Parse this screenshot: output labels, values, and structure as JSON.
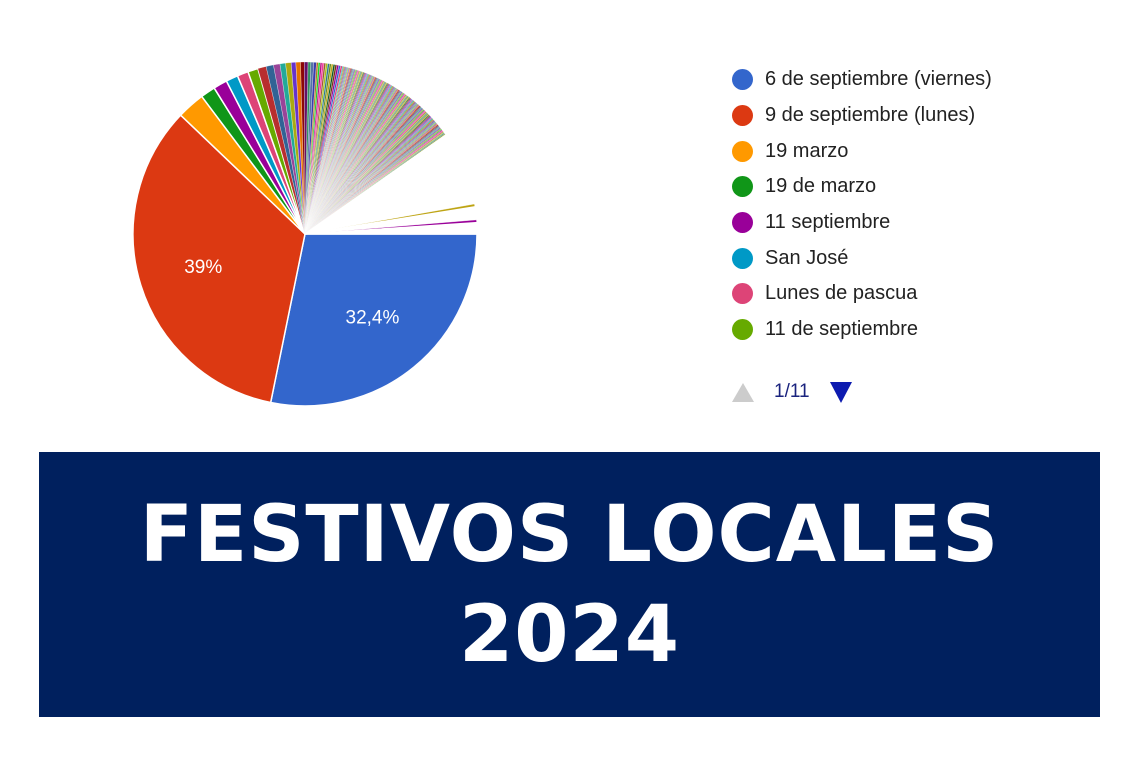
{
  "chart_data": {
    "type": "pie",
    "start_angle_deg": 90,
    "direction": "clockwise",
    "slices": [
      {
        "name": "6 de septiembre (viernes)",
        "value": 32.4,
        "label": "32,4%",
        "color": "#3366cc"
      },
      {
        "name": "9 de septiembre (lunes)",
        "value": 39.0,
        "label": "39%",
        "color": "#dc3912"
      },
      {
        "name": "19 marzo",
        "value": 3.0,
        "label": "",
        "color": "#ff9900"
      },
      {
        "name": "19 de marzo",
        "value": 1.6,
        "label": "",
        "color": "#109618"
      },
      {
        "name": "11 septiembre",
        "value": 1.5,
        "label": "",
        "color": "#990099"
      },
      {
        "name": "San José",
        "value": 1.3,
        "label": "",
        "color": "#0099c6"
      },
      {
        "name": "Lunes de pascua",
        "value": 1.2,
        "label": "",
        "color": "#dd4477"
      },
      {
        "name": "11 de septiembre",
        "value": 1.1,
        "label": "",
        "color": "#66aa00"
      },
      {
        "value": 0.9,
        "label": "",
        "color": "#b82e2e"
      },
      {
        "value": 0.8,
        "label": "",
        "color": "#316395"
      },
      {
        "value": 0.7,
        "label": "",
        "color": "#994499"
      },
      {
        "value": 0.6,
        "label": "",
        "color": "#22aa99"
      },
      {
        "value": 0.6,
        "label": "",
        "color": "#aaaa11"
      },
      {
        "value": 0.5,
        "label": "",
        "color": "#6633cc"
      },
      {
        "value": 0.5,
        "label": "",
        "color": "#e67300"
      },
      {
        "value": 0.4,
        "label": "",
        "color": "#8b0707"
      },
      {
        "value": 0.4,
        "label": "",
        "color": "#651067"
      },
      {
        "value": 0.3,
        "label": "",
        "color": "#329262"
      },
      {
        "value": 0.3,
        "label": "",
        "color": "#5574a6"
      },
      {
        "value": 0.3,
        "label": "",
        "color": "#3b3eac"
      },
      {
        "value": 0.2,
        "label": "",
        "color": "#b77322"
      },
      {
        "value": 0.2,
        "label": "",
        "color": "#16d620"
      },
      {
        "value": 0.2,
        "label": "",
        "color": "#b91383"
      },
      {
        "value": 0.2,
        "label": "",
        "color": "#f4359e"
      },
      {
        "value": 0.2,
        "label": "",
        "color": "#9c5935"
      },
      {
        "value": 0.2,
        "label": "",
        "color": "#a9c413"
      },
      {
        "value": 0.2,
        "label": "",
        "color": "#2a778d"
      },
      {
        "value": 0.2,
        "label": "",
        "color": "#668d1c"
      },
      {
        "value": 0.2,
        "label": "",
        "color": "#bea413"
      },
      {
        "value": 0.2,
        "label": "",
        "color": "#0c5922"
      },
      {
        "value": 0.2,
        "label": "",
        "color": "#743411"
      },
      {
        "value": 0.2,
        "label": "",
        "color": "#990099"
      },
      {
        "value": 0.2,
        "label": "",
        "color": "#3366cc"
      },
      {
        "value": 0.2,
        "label": "",
        "color": "#dd4477"
      },
      {
        "value": 0.1,
        "label": "",
        "color": "#0099c6"
      },
      {
        "value": 0.1,
        "label": "",
        "color": "#66aa00"
      },
      {
        "value": 0.1,
        "label": "",
        "color": "#b82e2e"
      },
      {
        "value": 0.1,
        "label": "",
        "color": "#316395"
      },
      {
        "value": 0.1,
        "label": "",
        "color": "#994499"
      },
      {
        "value": 0.1,
        "label": "",
        "color": "#22aa99"
      },
      {
        "value": 0.1,
        "label": "",
        "color": "#aaaa11"
      },
      {
        "value": 0.1,
        "label": "",
        "color": "#6633cc"
      },
      {
        "value": 0.1,
        "label": "",
        "color": "#e67300"
      },
      {
        "value": 0.1,
        "label": "",
        "color": "#8b0707"
      },
      {
        "value": 0.1,
        "label": "",
        "color": "#651067"
      },
      {
        "value": 0.1,
        "label": "",
        "color": "#329262"
      },
      {
        "value": 0.1,
        "label": "",
        "color": "#5574a6"
      },
      {
        "value": 0.1,
        "label": "",
        "color": "#3b3eac"
      },
      {
        "value": 0.1,
        "label": "",
        "color": "#b77322"
      },
      {
        "value": 0.1,
        "label": "",
        "color": "#16d620"
      },
      {
        "value": 0.1,
        "label": "",
        "color": "#b91383"
      },
      {
        "value": 0.1,
        "label": "",
        "color": "#f4359e"
      },
      {
        "value": 0.1,
        "label": "",
        "color": "#9c5935"
      },
      {
        "value": 0.1,
        "label": "",
        "color": "#a9c413"
      },
      {
        "value": 0.1,
        "label": "",
        "color": "#2a778d"
      },
      {
        "value": 0.1,
        "label": "",
        "color": "#668d1c"
      },
      {
        "value": 0.1,
        "label": "",
        "color": "#bea413"
      },
      {
        "value": 0.1,
        "label": "",
        "color": "#0c5922"
      },
      {
        "value": 0.1,
        "label": "",
        "color": "#743411"
      },
      {
        "value": 0.1,
        "label": "",
        "color": "#990099"
      },
      {
        "value": 0.1,
        "label": "",
        "color": "#3366cc"
      },
      {
        "value": 0.1,
        "label": "",
        "color": "#dd4477"
      },
      {
        "value": 0.1,
        "label": "",
        "color": "#0099c6"
      },
      {
        "value": 0.1,
        "label": "",
        "color": "#66aa00"
      },
      {
        "value": 0.1,
        "label": "",
        "color": "#b82e2e"
      },
      {
        "value": 0.1,
        "label": "",
        "color": "#316395"
      },
      {
        "value": 0.1,
        "label": "",
        "color": "#994499"
      },
      {
        "value": 0.1,
        "label": "",
        "color": "#22aa99"
      },
      {
        "value": 0.1,
        "label": "",
        "color": "#aaaa11"
      },
      {
        "value": 0.1,
        "label": "",
        "color": "#6633cc"
      },
      {
        "value": 0.1,
        "label": "",
        "color": "#e67300"
      },
      {
        "value": 0.1,
        "label": "",
        "color": "#8b0707"
      },
      {
        "value": 0.1,
        "label": "",
        "color": "#651067"
      },
      {
        "value": 0.1,
        "label": "",
        "color": "#329262"
      },
      {
        "value": 0.1,
        "label": "",
        "color": "#5574a6"
      },
      {
        "value": 0.1,
        "label": "",
        "color": "#3b3eac"
      },
      {
        "value": 0.1,
        "label": "",
        "color": "#b77322"
      },
      {
        "value": 0.1,
        "label": "",
        "color": "#16d620"
      },
      {
        "value": 0.1,
        "label": "",
        "color": "#b91383"
      },
      {
        "value": 0.1,
        "label": "",
        "color": "#f4359e"
      },
      {
        "value": 0.1,
        "label": "",
        "color": "#9c5935"
      },
      {
        "value": 0.1,
        "label": "",
        "color": "#a9c413"
      },
      {
        "value": 0.1,
        "label": "",
        "color": "#2a778d"
      },
      {
        "value": 0.1,
        "label": "",
        "color": "#668d1c"
      },
      {
        "value": 0.1,
        "label": "",
        "color": "#bea413"
      },
      {
        "value": 0.1,
        "label": "",
        "color": "#0c5922"
      },
      {
        "value": 0.1,
        "label": "",
        "color": "#743411"
      },
      {
        "value": 0.1,
        "label": "",
        "color": "#990099"
      },
      {
        "value": 0.1,
        "label": "",
        "color": "#3366cc"
      },
      {
        "value": 0.1,
        "label": "",
        "color": "#dd4477"
      },
      {
        "value": 0.1,
        "label": "",
        "color": "#0099c6"
      },
      {
        "value": 0.1,
        "label": "",
        "color": "#66aa00"
      },
      {
        "value": 0.1,
        "label": "",
        "color": "#b82e2e"
      },
      {
        "value": 0.1,
        "label": "",
        "color": "#316395"
      },
      {
        "value": 0.1,
        "label": "",
        "color": "#994499"
      },
      {
        "value": 0.1,
        "label": "",
        "color": "#22aa99"
      },
      {
        "value": 0.1,
        "label": "",
        "color": "#aaaa11"
      },
      {
        "value": 0.1,
        "label": "",
        "color": "#6633cc"
      },
      {
        "value": 0.1,
        "label": "",
        "color": "#e67300"
      },
      {
        "value": 0.1,
        "label": "",
        "color": "#8b0707"
      },
      {
        "value": 0.1,
        "label": "",
        "color": "#651067"
      },
      {
        "value": 0.1,
        "label": "",
        "color": "#329262"
      },
      {
        "value": 0.1,
        "label": "",
        "color": "#5574a6"
      },
      {
        "value": 0.1,
        "label": "",
        "color": "#3b3eac"
      },
      {
        "value": 0.1,
        "label": "",
        "color": "#b77322"
      },
      {
        "value": 0.1,
        "label": "",
        "color": "#16d620"
      },
      {
        "value": 0.1,
        "label": "",
        "color": "#b91383"
      },
      {
        "value": 0.1,
        "label": "",
        "color": "#f4359e"
      },
      {
        "value": 0.1,
        "label": "",
        "color": "#9c5935"
      },
      {
        "value": 0.1,
        "label": "",
        "color": "#a9c413"
      },
      {
        "value": 0.1,
        "label": "",
        "color": "#2a778d"
      },
      {
        "value": 0.1,
        "label": "",
        "color": "#668d1c"
      },
      {
        "value": 0.1,
        "label": "",
        "color": "#bea413"
      },
      {
        "value": 0.1,
        "label": "",
        "color": "#0c5922"
      },
      {
        "value": 0.1,
        "label": "",
        "color": "#743411"
      },
      {
        "value": 0.1,
        "label": "",
        "color": "#990099"
      },
      {
        "value": 0.1,
        "label": "",
        "color": "#3366cc"
      },
      {
        "value": 0.1,
        "label": "",
        "color": "#dd4477"
      },
      {
        "value": 0.1,
        "label": "",
        "color": "#0099c6"
      },
      {
        "value": 0.1,
        "label": "",
        "color": "#66aa00"
      },
      {
        "value": 0.1,
        "label": "",
        "color": "#b82e2e"
      },
      {
        "value": 0.1,
        "label": "",
        "color": "#316395"
      },
      {
        "value": 0.1,
        "label": "",
        "color": "#994499"
      },
      {
        "value": 0.1,
        "label": "",
        "color": "#22aa99"
      },
      {
        "value": 0.1,
        "label": "",
        "color": "#aaaa11"
      },
      {
        "value": 0.1,
        "label": "",
        "color": "#6633cc"
      },
      {
        "value": 0.1,
        "label": "",
        "color": "#e67300"
      },
      {
        "value": 0.1,
        "label": "",
        "color": "#8b0707"
      },
      {
        "value": 0.1,
        "label": "",
        "color": "#651067"
      },
      {
        "value": 0.1,
        "label": "",
        "color": "#329262"
      },
      {
        "value": 0.1,
        "label": "",
        "color": "#5574a6"
      },
      {
        "value": 0.1,
        "label": "",
        "color": "#3b3eac"
      },
      {
        "value": 0.1,
        "label": "",
        "color": "#b77322"
      },
      {
        "value": 0.1,
        "label": "",
        "color": "#16d620"
      },
      {
        "value": 0.1,
        "label": "",
        "color": "#b91383"
      },
      {
        "value": 0.1,
        "label": "",
        "color": "#f4359e"
      },
      {
        "value": 0.1,
        "label": "",
        "color": "#9c5935"
      },
      {
        "value": 0.1,
        "label": "",
        "color": "#a9c413"
      },
      {
        "value": 0.1,
        "label": "",
        "color": "#2a778d"
      },
      {
        "value": 0.1,
        "label": "",
        "color": "#668d1c"
      },
      {
        "value": 0.1,
        "label": "",
        "color": "#bea413"
      },
      {
        "value": 0.1,
        "label": "",
        "color": "#0c5922"
      },
      {
        "value": 0.1,
        "label": "",
        "color": "#743411"
      },
      {
        "value": 0.1,
        "label": "",
        "color": "#990099"
      },
      {
        "value": 0.1,
        "label": "",
        "color": "#3366cc"
      },
      {
        "value": 0.1,
        "label": "",
        "color": "#dd4477"
      },
      {
        "value": 0.1,
        "label": "",
        "color": "#0099c6"
      },
      {
        "value": 0.1,
        "label": "",
        "color": "#66aa00"
      },
      {
        "value": 0.1,
        "label": "",
        "color": "#b82e2e"
      },
      {
        "value": 0.1,
        "label": "",
        "color": "#316395"
      },
      {
        "value": 0.1,
        "label": "",
        "color": "#994499"
      },
      {
        "value": 0.1,
        "label": "",
        "color": "#22aa99"
      },
      {
        "value": 0.1,
        "label": "",
        "color": "#aaaa11"
      },
      {
        "value": 0.1,
        "label": "",
        "color": "#6633cc"
      },
      {
        "value": 0.1,
        "label": "",
        "color": "#e67300"
      },
      {
        "value": 0.1,
        "label": "",
        "color": "#8b0707"
      },
      {
        "value": 0.1,
        "label": "",
        "color": "#651067"
      },
      {
        "value": 0.1,
        "label": "",
        "color": "#329262"
      },
      {
        "value": 0.1,
        "label": "",
        "color": "#5574a6"
      },
      {
        "value": 0.1,
        "label": "",
        "color": "#3b3eac"
      },
      {
        "value": 0.1,
        "label": "",
        "color": "#b77322"
      },
      {
        "value": 0.1,
        "label": "",
        "color": "#16d620"
      },
      {
        "value": 0.1,
        "label": "",
        "color": "#b91383"
      },
      {
        "value": 0.1,
        "label": "",
        "color": "#f4359e"
      },
      {
        "value": 0.1,
        "label": "",
        "color": "#9c5935"
      },
      {
        "value": 0.1,
        "label": "",
        "color": "#a9c413"
      },
      {
        "value": 0.1,
        "label": "",
        "color": "#2a778d"
      },
      {
        "value": 0.1,
        "label": "",
        "color": "#668d1c"
      },
      {
        "value": 0.1,
        "label": "",
        "color": "#bea413"
      },
      {
        "value": 8.0,
        "label": "",
        "color": "#ffffff"
      },
      {
        "value": 0.3,
        "label": "",
        "color": "#bea413"
      },
      {
        "value": 1.4,
        "label": "",
        "color": "#ffffff"
      },
      {
        "value": 0.3,
        "label": "",
        "color": "#990099"
      },
      {
        "value": 1.2,
        "label": "",
        "color": "#ffffff"
      }
    ],
    "legend": {
      "placement": "right",
      "visible_count": 8,
      "items": [
        {
          "label": "6 de septiembre (viernes)",
          "color": "#3366cc"
        },
        {
          "label": "9 de septiembre (lunes)",
          "color": "#dc3912"
        },
        {
          "label": "19 marzo",
          "color": "#ff9900"
        },
        {
          "label": "19 de marzo",
          "color": "#109618"
        },
        {
          "label": "11 septiembre",
          "color": "#990099"
        },
        {
          "label": "San José",
          "color": "#0099c6"
        },
        {
          "label": "Lunes de pascua",
          "color": "#dd4477"
        },
        {
          "label": "11 de septiembre",
          "color": "#66aa00"
        }
      ],
      "pager": {
        "text": "1/11",
        "prev_enabled": false,
        "next_enabled": true,
        "prev_color": "#cccccc",
        "next_color": "#0d1bb0"
      }
    }
  },
  "banner": {
    "line1": "FESTIVOS LOCALES",
    "line2": "2024",
    "background": "#00205e",
    "text_color": "#ffffff"
  }
}
